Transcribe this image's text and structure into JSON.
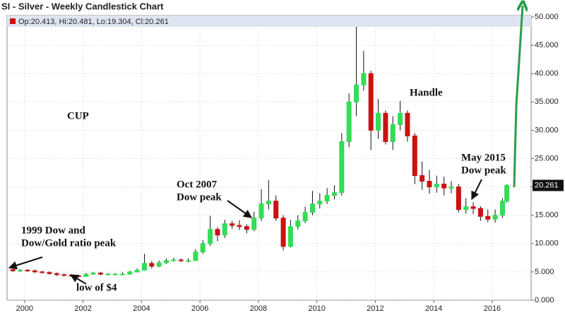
{
  "chart_data": {
    "type": "candlestick",
    "title": "SI - Silver - Weekly Candlestick Chart",
    "info": "Op:20.413, Hi:20.481, Lo:19.304, Cl:20.261",
    "x": [
      1999.6,
      1999.85,
      2000.1,
      2000.35,
      2000.6,
      2000.85,
      2001.1,
      2001.35,
      2001.6,
      2001.85,
      2002.1,
      2002.35,
      2002.6,
      2002.85,
      2003.1,
      2003.35,
      2003.6,
      2003.85,
      2004.1,
      2004.35,
      2004.6,
      2004.85,
      2005.1,
      2005.35,
      2005.6,
      2005.85,
      2006.1,
      2006.35,
      2006.6,
      2006.85,
      2007.1,
      2007.35,
      2007.6,
      2007.85,
      2008.1,
      2008.35,
      2008.6,
      2008.85,
      2009.1,
      2009.35,
      2009.6,
      2009.85,
      2010.1,
      2010.35,
      2010.6,
      2010.85,
      2011.1,
      2011.35,
      2011.6,
      2011.85,
      2012.1,
      2012.35,
      2012.6,
      2012.85,
      2013.1,
      2013.35,
      2013.6,
      2013.85,
      2014.1,
      2014.35,
      2014.6,
      2014.85,
      2015.1,
      2015.35,
      2015.6,
      2015.85,
      2016.1,
      2016.35,
      2016.5
    ],
    "open": [
      5.4,
      5.2,
      5.3,
      5.2,
      5.0,
      4.9,
      4.7,
      4.5,
      4.4,
      4.3,
      4.2,
      4.6,
      4.8,
      4.6,
      4.6,
      4.6,
      4.6,
      5.0,
      5.3,
      6.5,
      6.0,
      6.6,
      7.0,
      7.1,
      7.0,
      7.0,
      8.5,
      10,
      12.5,
      11.5,
      13.5,
      13.2,
      13.0,
      12.5,
      14.5,
      17,
      17.5,
      14.5,
      9.5,
      13,
      14,
      15.5,
      17,
      17.5,
      18.5,
      19,
      28,
      35,
      38,
      40,
      30,
      33,
      28,
      31,
      33,
      29,
      22,
      21,
      20,
      20.5,
      19.8,
      20,
      16,
      16.5,
      16.2,
      14.8,
      14.3,
      15,
      17.5
    ],
    "high": [
      5.6,
      5.5,
      5.5,
      5.4,
      5.2,
      5.1,
      4.9,
      4.7,
      4.6,
      4.5,
      4.8,
      5.0,
      5.0,
      4.8,
      4.8,
      4.9,
      5.2,
      5.6,
      8.2,
      6.9,
      7.0,
      7.4,
      7.5,
      7.4,
      7.4,
      9.0,
      10.6,
      14.9,
      12.9,
      14.2,
      14.0,
      14.1,
      13.4,
      15.6,
      19.6,
      21.2,
      18.5,
      15.0,
      14.2,
      15.0,
      16.5,
      19.3,
      18.9,
      19.8,
      20.3,
      29.5,
      36.5,
      49.8,
      44.0,
      40.5,
      35.5,
      33.5,
      32.5,
      35.2,
      33.5,
      29.5,
      24.5,
      23.0,
      22.0,
      21.8,
      21.0,
      20.5,
      18.0,
      17.3,
      16.6,
      16.0,
      16.0,
      18.0,
      20.481
    ],
    "low": [
      5.0,
      5.0,
      5.0,
      4.8,
      4.7,
      4.5,
      4.3,
      4.2,
      4.1,
      4.0,
      4.1,
      4.5,
      4.4,
      4.4,
      4.4,
      4.4,
      4.5,
      4.9,
      5.2,
      5.6,
      5.8,
      6.4,
      6.8,
      6.7,
      6.7,
      6.9,
      8.2,
      9.6,
      10.4,
      11.0,
      12.6,
      12.4,
      11.8,
      12.2,
      14.0,
      16.0,
      14.0,
      8.8,
      9.3,
      12.5,
      13.6,
      15.0,
      16.2,
      17.0,
      17.8,
      18.5,
      27.0,
      32.5,
      37.0,
      26.5,
      28.5,
      27.5,
      26.5,
      30.0,
      28.0,
      20.5,
      19.5,
      18.8,
      19.0,
      18.5,
      18.9,
      15.5,
      15.3,
      15.2,
      14.0,
      13.8,
      13.7,
      14.5,
      17.2
    ],
    "close": [
      5.2,
      5.3,
      5.2,
      5.0,
      4.9,
      4.7,
      4.5,
      4.4,
      4.3,
      4.2,
      4.6,
      4.8,
      4.6,
      4.6,
      4.6,
      4.6,
      5.0,
      5.3,
      6.5,
      6.0,
      6.6,
      7.0,
      7.1,
      7.0,
      7.0,
      8.5,
      10,
      12.5,
      11.5,
      13.5,
      13.2,
      13.0,
      12.5,
      14.5,
      17,
      17.5,
      14.5,
      9.5,
      13,
      14,
      15.5,
      17,
      17.5,
      18.5,
      19,
      28,
      35,
      38,
      40,
      30,
      33,
      28,
      31,
      33,
      29,
      22,
      21,
      20,
      20.5,
      19.8,
      20,
      16,
      16.5,
      16.2,
      14.8,
      14.3,
      15,
      17.5,
      20.261
    ],
    "up_color": "#33dd55",
    "down_color": "#cc1111",
    "xlim": [
      1999.4,
      2017.33
    ],
    "xticks": [
      2000,
      2002,
      2004,
      2006,
      2008,
      2010,
      2012,
      2014,
      2016
    ],
    "ylim": [
      0,
      50
    ],
    "yticks": [
      {
        "value": 0,
        "label": "0.000"
      },
      {
        "value": 5,
        "label": "5.000"
      },
      {
        "value": 10,
        "label": "10.000"
      },
      {
        "value": 15,
        "label": "15.000"
      },
      {
        "value": 20,
        "label": "20.000"
      },
      {
        "value": 25,
        "label": "25.000"
      },
      {
        "value": 30,
        "label": "30.000"
      },
      {
        "value": 35,
        "label": "35.000"
      },
      {
        "value": 40,
        "label": "40.000"
      },
      {
        "value": 45,
        "label": "45.000"
      },
      {
        "value": 50,
        "label": "50.000"
      }
    ],
    "grid": true,
    "annotations": [
      "CUP",
      "Handle",
      "Oct 2007",
      "Dow peak",
      "1999 Dow and",
      "Dow/Gold ratio peak",
      "low of $4",
      "May 2015",
      "Dow peak"
    ]
  }
}
